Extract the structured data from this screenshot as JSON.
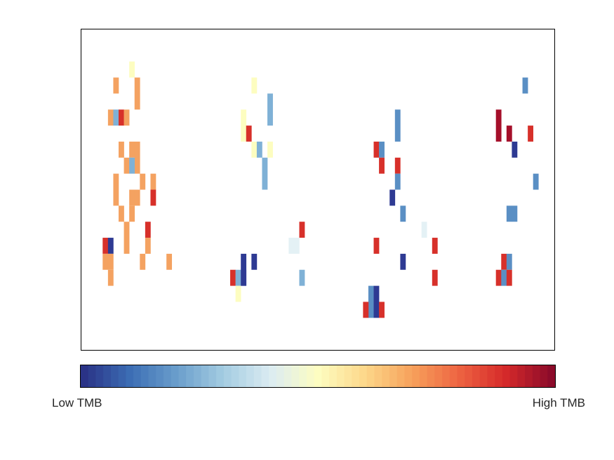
{
  "chart_data": {
    "type": "heatmap",
    "title": "",
    "xlabel": "",
    "ylabel": "",
    "grid": false,
    "n_cols": 89,
    "n_rows": 20,
    "colorbar": {
      "low_label": "Low TMB",
      "high_label": "High TMB",
      "n_steps": 63,
      "stops": [
        [
          0.0,
          "#2a3387"
        ],
        [
          0.1,
          "#3d6fb5"
        ],
        [
          0.2,
          "#6b9fcc"
        ],
        [
          0.3,
          "#a5cde2"
        ],
        [
          0.4,
          "#dcecf2"
        ],
        [
          0.5,
          "#fdfdc1"
        ],
        [
          0.6,
          "#fdd88a"
        ],
        [
          0.7,
          "#f7a25c"
        ],
        [
          0.8,
          "#ee6542"
        ],
        [
          0.9,
          "#d62a2a"
        ],
        [
          1.0,
          "#8c0b2a"
        ]
      ]
    },
    "palette": {
      "navy": "#2e3a93",
      "steel": "#5a8fc4",
      "lightblue": "#7fb1d6",
      "pale": "#e4f1f5",
      "cream": "#fdfdc0",
      "orange": "#f4a261",
      "red": "#d7302a",
      "darkred": "#a50f2a"
    },
    "cells": [
      {
        "c": 9,
        "r": 2,
        "h": 1,
        "v": "cream"
      },
      {
        "c": 6,
        "r": 3,
        "h": 1,
        "v": "orange"
      },
      {
        "c": 10,
        "r": 3,
        "h": 2,
        "v": "orange"
      },
      {
        "c": 5,
        "r": 5,
        "h": 1,
        "v": "orange"
      },
      {
        "c": 6,
        "r": 5,
        "h": 1,
        "v": "lightblue"
      },
      {
        "c": 7,
        "r": 5,
        "h": 1,
        "v": "red"
      },
      {
        "c": 8,
        "r": 5,
        "h": 1,
        "v": "orange"
      },
      {
        "c": 7,
        "r": 7,
        "h": 1,
        "v": "orange"
      },
      {
        "c": 9,
        "r": 7,
        "h": 1,
        "v": "orange"
      },
      {
        "c": 10,
        "r": 7,
        "h": 2,
        "v": "orange"
      },
      {
        "c": 8,
        "r": 8,
        "h": 1,
        "v": "orange"
      },
      {
        "c": 9,
        "r": 8,
        "h": 1,
        "v": "lightblue"
      },
      {
        "c": 6,
        "r": 9,
        "h": 2,
        "v": "orange"
      },
      {
        "c": 11,
        "r": 9,
        "h": 1,
        "v": "orange"
      },
      {
        "c": 13,
        "r": 9,
        "h": 1,
        "v": "orange"
      },
      {
        "c": 9,
        "r": 10,
        "h": 1,
        "v": "orange"
      },
      {
        "c": 10,
        "r": 10,
        "h": 1,
        "v": "orange"
      },
      {
        "c": 13,
        "r": 10,
        "h": 1,
        "v": "red"
      },
      {
        "c": 7,
        "r": 11,
        "h": 1,
        "v": "orange"
      },
      {
        "c": 9,
        "r": 11,
        "h": 1,
        "v": "orange"
      },
      {
        "c": 8,
        "r": 12,
        "h": 2,
        "v": "orange"
      },
      {
        "c": 12,
        "r": 12,
        "h": 1,
        "v": "red"
      },
      {
        "c": 4,
        "r": 13,
        "h": 1,
        "v": "red"
      },
      {
        "c": 5,
        "r": 13,
        "h": 1,
        "v": "navy"
      },
      {
        "c": 12,
        "r": 13,
        "h": 1,
        "v": "orange"
      },
      {
        "c": 4,
        "r": 14,
        "h": 1,
        "v": "orange"
      },
      {
        "c": 5,
        "r": 14,
        "h": 1,
        "v": "orange"
      },
      {
        "c": 11,
        "r": 14,
        "h": 1,
        "v": "orange"
      },
      {
        "c": 16,
        "r": 14,
        "h": 1,
        "v": "orange"
      },
      {
        "c": 5,
        "r": 15,
        "h": 1,
        "v": "orange"
      },
      {
        "c": 32,
        "r": 3,
        "h": 1,
        "v": "cream"
      },
      {
        "c": 35,
        "r": 4,
        "h": 2,
        "v": "lightblue"
      },
      {
        "c": 30,
        "r": 5,
        "h": 2,
        "v": "cream"
      },
      {
        "c": 31,
        "r": 6,
        "h": 1,
        "v": "red"
      },
      {
        "c": 32,
        "r": 7,
        "h": 1,
        "v": "cream"
      },
      {
        "c": 33,
        "r": 7,
        "h": 1,
        "v": "lightblue"
      },
      {
        "c": 35,
        "r": 7,
        "h": 1,
        "v": "cream"
      },
      {
        "c": 34,
        "r": 8,
        "h": 2,
        "v": "lightblue"
      },
      {
        "c": 41,
        "r": 12,
        "h": 1,
        "v": "red"
      },
      {
        "c": 39,
        "r": 13,
        "h": 1,
        "v": "pale"
      },
      {
        "c": 40,
        "r": 13,
        "h": 1,
        "v": "pale"
      },
      {
        "c": 30,
        "r": 14,
        "h": 2,
        "v": "navy"
      },
      {
        "c": 32,
        "r": 14,
        "h": 1,
        "v": "navy"
      },
      {
        "c": 28,
        "r": 15,
        "h": 1,
        "v": "red"
      },
      {
        "c": 29,
        "r": 15,
        "h": 1,
        "v": "lightblue"
      },
      {
        "c": 30,
        "r": 15,
        "h": 1,
        "v": "navy"
      },
      {
        "c": 41,
        "r": 15,
        "h": 1,
        "v": "lightblue"
      },
      {
        "c": 29,
        "r": 16,
        "h": 1,
        "v": "cream"
      },
      {
        "c": 59,
        "r": 5,
        "h": 2,
        "v": "steel"
      },
      {
        "c": 55,
        "r": 7,
        "h": 1,
        "v": "red"
      },
      {
        "c": 56,
        "r": 7,
        "h": 1,
        "v": "steel"
      },
      {
        "c": 56,
        "r": 8,
        "h": 1,
        "v": "red"
      },
      {
        "c": 59,
        "r": 8,
        "h": 1,
        "v": "red"
      },
      {
        "c": 59,
        "r": 9,
        "h": 1,
        "v": "steel"
      },
      {
        "c": 58,
        "r": 10,
        "h": 1,
        "v": "navy"
      },
      {
        "c": 60,
        "r": 11,
        "h": 1,
        "v": "steel"
      },
      {
        "c": 64,
        "r": 12,
        "h": 1,
        "v": "pale"
      },
      {
        "c": 55,
        "r": 13,
        "h": 1,
        "v": "red"
      },
      {
        "c": 66,
        "r": 13,
        "h": 1,
        "v": "red"
      },
      {
        "c": 60,
        "r": 14,
        "h": 1,
        "v": "navy"
      },
      {
        "c": 66,
        "r": 15,
        "h": 1,
        "v": "red"
      },
      {
        "c": 54,
        "r": 16,
        "h": 2,
        "v": "steel"
      },
      {
        "c": 55,
        "r": 16,
        "h": 2,
        "v": "navy"
      },
      {
        "c": 53,
        "r": 17,
        "h": 1,
        "v": "red"
      },
      {
        "c": 56,
        "r": 17,
        "h": 1,
        "v": "red"
      },
      {
        "c": 83,
        "r": 3,
        "h": 1,
        "v": "steel"
      },
      {
        "c": 78,
        "r": 5,
        "h": 2,
        "v": "darkred"
      },
      {
        "c": 80,
        "r": 6,
        "h": 1,
        "v": "darkred"
      },
      {
        "c": 84,
        "r": 6,
        "h": 1,
        "v": "red"
      },
      {
        "c": 81,
        "r": 7,
        "h": 1,
        "v": "navy"
      },
      {
        "c": 85,
        "r": 9,
        "h": 1,
        "v": "steel"
      },
      {
        "c": 80,
        "r": 11,
        "h": 1,
        "v": "steel"
      },
      {
        "c": 81,
        "r": 11,
        "h": 1,
        "v": "steel"
      },
      {
        "c": 78,
        "r": 15,
        "h": 1,
        "v": "red"
      },
      {
        "c": 79,
        "r": 14,
        "h": 1,
        "v": "red"
      },
      {
        "c": 80,
        "r": 14,
        "h": 1,
        "v": "steel"
      },
      {
        "c": 79,
        "r": 15,
        "h": 1,
        "v": "steel"
      },
      {
        "c": 80,
        "r": 15,
        "h": 1,
        "v": "red"
      }
    ]
  }
}
